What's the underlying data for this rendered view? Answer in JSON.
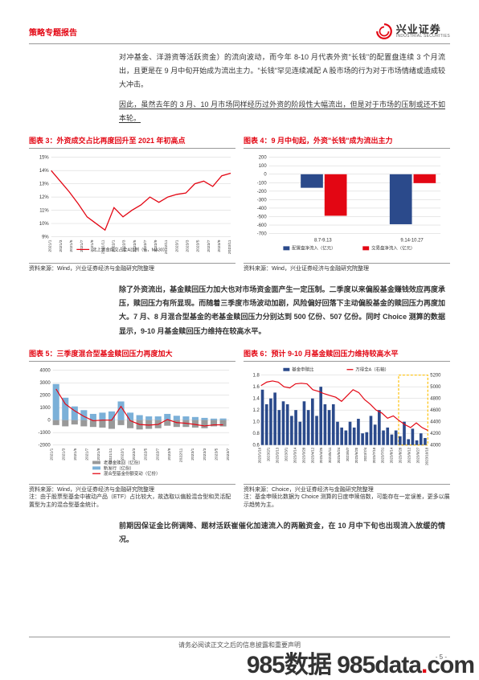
{
  "header": {
    "title": "策略专题报告",
    "logo_cn": "兴业证券",
    "logo_en": "INDUSTRIAL SECURITIES"
  },
  "para1": "对冲基金、洋游资等活跃资金）的流向波动，而今年 8-10 月代表外资\"长钱\"的配置盘连续 3 个月流出，且更是在 9 月中旬开始成为流出主力。\"长钱\"罕见连续减配 A 股市场的行为对于市场情绪或造成较大冲击。",
  "para2": "因此，虽然去年的 3 月、10 月市场同样经历过外资的阶段性大幅流出，但是对于市场的压制或还不如本轮。",
  "chart3": {
    "title": "图表 3：外资成交占比再度回升至 2021 年初高点",
    "y_labels": [
      "15%",
      "14%",
      "13%",
      "12%",
      "11%",
      "10%",
      "9%"
    ],
    "x_labels": [
      "2021/1",
      "2021/3",
      "2021/5",
      "2021/7",
      "2021/9",
      "2021/11",
      "2022/1",
      "2022/3",
      "2022/5",
      "2022/7",
      "2022/9",
      "2022/11",
      "2023/1",
      "2023/3",
      "2023/5",
      "2023/7",
      "2023/9",
      "2023/11"
    ],
    "legend": "北上资金成交占全A比例（%，MA30）",
    "line_color": "#e30613",
    "grid_color": "#d0d0d0",
    "data": [
      14.0,
      13.2,
      12.4,
      11.5,
      10.5,
      10.0,
      9.5,
      11.2,
      10.5,
      11.0,
      11.4,
      12.0,
      11.6,
      12.0,
      12.2,
      12.3,
      13.0,
      13.2,
      12.8,
      13.6,
      13.8
    ],
    "source": "资料来源：Wind，兴业证券经济与金融研究院整理"
  },
  "chart4": {
    "title": "图表 4：9 月中旬起，外资\"长钱\"成为流出主力",
    "y_min": -700,
    "y_max": 200,
    "y_step": 100,
    "periods": [
      "8.7-9.13",
      "9.14-10.27"
    ],
    "series": [
      {
        "name": "配置盘净流入（亿元）",
        "color": "#2b4a8b",
        "values": [
          -160,
          -590
        ]
      },
      {
        "name": "交易盘净流入（亿元）",
        "color": "#e30613",
        "values": [
          -490,
          -105
        ]
      }
    ],
    "grid_color": "#d0d0d0",
    "source": "资料来源：Wind，兴业证券经济与金融研究院整理"
  },
  "para3": "除了外资流出，基金赎回压力加大也对市场资金面产生一定压制。二季度以来偏股基金赚钱效应再度承压，赎回压力有所显现。而随着三季度市场波动加剧，风险偏好回落下主动偏股基金的赎回压力再度加大。7 月、8 月混合型基金的老基金赎回压力分别达到 500 亿份、507 亿份。同时 Choice 测算的数据显示，9-10 月基金赎回压力维持在较高水平。",
  "chart5": {
    "title": "图表 5：三季度混合型基金赎回压力再度加大",
    "y_labels": [
      "4000",
      "3000",
      "2000",
      "1000",
      "0",
      "-1000",
      "-2000"
    ],
    "x_labels": [
      "2021/1",
      "2021/3",
      "2021/5",
      "2021/7",
      "2021/9",
      "2021/11",
      "2022/1",
      "2022/3",
      "2022/5",
      "2022/7",
      "2022/9",
      "2022/11",
      "2023/1",
      "2023/3",
      "2023/5",
      "2023/7"
    ],
    "legend": [
      "老基金赎回（亿份）",
      "新发行（亿份）",
      "混合型基金份额变动（亿份）"
    ],
    "colors": {
      "bar_pos": "#7bb0d8",
      "bar_neg": "#999",
      "line": "#e30613"
    },
    "bars_pos": [
      2900,
      1800,
      1100,
      800,
      500,
      600,
      700,
      1500,
      600,
      400,
      300,
      300,
      500,
      350,
      300,
      250,
      180,
      120,
      130
    ],
    "bars_neg": [
      -400,
      -500,
      -350,
      -500,
      -550,
      -600,
      -700,
      -400,
      -650,
      -750,
      -700,
      -650,
      -450,
      -550,
      -550,
      -600,
      -650,
      -500,
      -507
    ],
    "line": [
      2500,
      1300,
      750,
      300,
      -50,
      0,
      0,
      1100,
      -50,
      -350,
      -400,
      -350,
      50,
      -200,
      -250,
      -350,
      -470,
      -380,
      -377
    ],
    "grid_color": "#d0d0d0",
    "source": "资料来源：Wind，兴业证券经济与金融研究院整理",
    "note": "注：由于股票型基金中被动产品（ETF）占比较大，故选取以偏股混合型和灵活配置型为主的混合型基金统计。"
  },
  "chart6": {
    "title": "图表 6：预计 9-10 月基金赎回压力维持较高水平",
    "y_left": {
      "min": 0.6,
      "max": 1.8,
      "labels": [
        "1.8",
        "1.6",
        "1.4",
        "1.2",
        "1.0",
        "0.8",
        "0.6"
      ]
    },
    "y_right": {
      "min": 4000,
      "max": 5200,
      "labels": [
        "5200",
        "5000",
        "4800",
        "4600",
        "4400",
        "4200",
        "4000"
      ]
    },
    "x_labels": [
      "2023/1/16",
      "2023/2/1",
      "2023/2/13",
      "2023/3/1",
      "2023/3/14",
      "2023/3/28",
      "2023/4/12",
      "2023/4/25",
      "2023/5/11",
      "2023/5/24",
      "2023/6/7",
      "2023/6/20",
      "2023/7/4",
      "2023/7/18",
      "2023/7/31",
      "2023/8/14",
      "2023/8/28",
      "2023/9/12",
      "2023/9/27",
      "2023/10/18"
    ],
    "legend": [
      "基金申赎比",
      "万得全A（右轴）"
    ],
    "bar_color": "#2b4a8b",
    "line_color": "#e30613",
    "highlight_color": "#ffc107",
    "bars": [
      1.55,
      1.3,
      1.4,
      1.5,
      1.2,
      1.35,
      1.3,
      1.1,
      1.2,
      1.0,
      1.35,
      1.2,
      1.4,
      1.1,
      1.6,
      1.3,
      1.2,
      1.3,
      1.0,
      0.9,
      0.85,
      1.0,
      0.9,
      1.05,
      0.8,
      0.82,
      1.1,
      0.95,
      1.2,
      0.85,
      0.9,
      0.78,
      0.85,
      0.75,
      1.0,
      0.7,
      0.88,
      0.68,
      0.8,
      0.72
    ],
    "line": [
      5020,
      5080,
      5100,
      5080,
      5000,
      4980,
      5050,
      5060,
      5050,
      4950,
      4920,
      4880,
      4850,
      4820,
      4750,
      4850,
      4950,
      4900,
      4780,
      4700,
      4600,
      4550,
      4460,
      4500,
      4420,
      4350,
      4300,
      4380,
      4300,
      4250
    ],
    "grid_color": "#d0d0d0",
    "source": "资料来源：Choice，兴业证券经济与金融研究院整理",
    "note": "注：基金申赎比数据为 Choice 测算的日度申赎倍数，可能存在一定误差，更多以展示趋势为主。"
  },
  "para4": "前期因保证金比例调降、题材活跃崔催化加速流入的两融资金，在 10 月中下旬也出现流入放缓的情况。",
  "footer": "请务必阅读正文之后的信息披露和重要声明",
  "pagenum": "- 5 -",
  "watermark_a": "985数据",
  "watermark_b": "985data",
  "watermark_c": "com"
}
